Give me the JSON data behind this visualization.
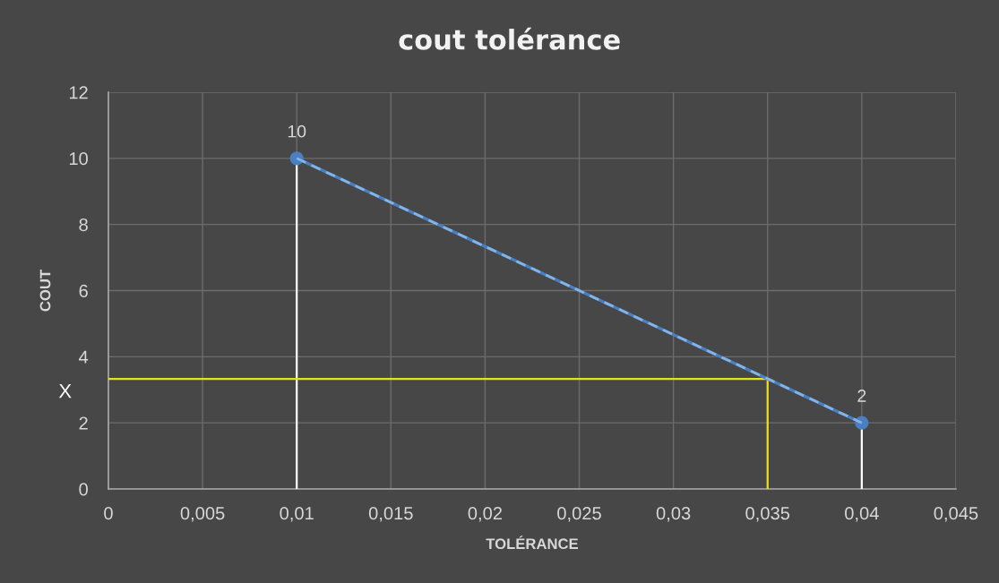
{
  "chart_data": {
    "type": "line",
    "title": "cout tolérance",
    "xlabel": "TOLÉRANCE",
    "ylabel": "COUT",
    "xlim": [
      0,
      0.045
    ],
    "ylim": [
      0,
      12
    ],
    "xticks": [
      0,
      {
        "value": 0.005,
        "label": "0,005"
      },
      {
        "value": 0.01,
        "label": "0,01"
      },
      {
        "value": 0.015,
        "label": "0,015"
      },
      {
        "value": 0.02,
        "label": "0,02"
      },
      {
        "value": 0.025,
        "label": "0,025"
      },
      {
        "value": 0.03,
        "label": "0,03"
      },
      {
        "value": 0.035,
        "label": "0,035"
      },
      {
        "value": 0.04,
        "label": "0,04"
      },
      {
        "value": 0.045,
        "label": "0,045"
      }
    ],
    "yticks": [
      0,
      2,
      4,
      6,
      8,
      10,
      12
    ],
    "grid": true,
    "series": [
      {
        "x": [
          0.01,
          0.01
        ],
        "values": [
          0,
          10
        ],
        "color": "#ffffff",
        "line_style": "solid",
        "marker": "none"
      },
      {
        "x": [
          0.04,
          0.04
        ],
        "values": [
          0,
          2
        ],
        "color": "#ffffff",
        "line_style": "solid",
        "marker": "none"
      },
      {
        "x": [
          0,
          0.035,
          0.035
        ],
        "values": [
          3.33,
          3.33,
          0
        ],
        "color": "#e8e020",
        "line_style": "solid",
        "marker": "none"
      },
      {
        "x": [
          0.01,
          0.04
        ],
        "values": [
          10,
          2
        ],
        "color": "#4a7fc1",
        "line_style": "solid",
        "marker": "circle",
        "value_labels": [
          "10",
          "2"
        ]
      },
      {
        "x": [
          0.01,
          0.04
        ],
        "values": [
          10,
          2
        ],
        "color": "#86b4e4",
        "line_style": "dashed",
        "marker": "none"
      }
    ],
    "annotations": [
      "X"
    ]
  }
}
